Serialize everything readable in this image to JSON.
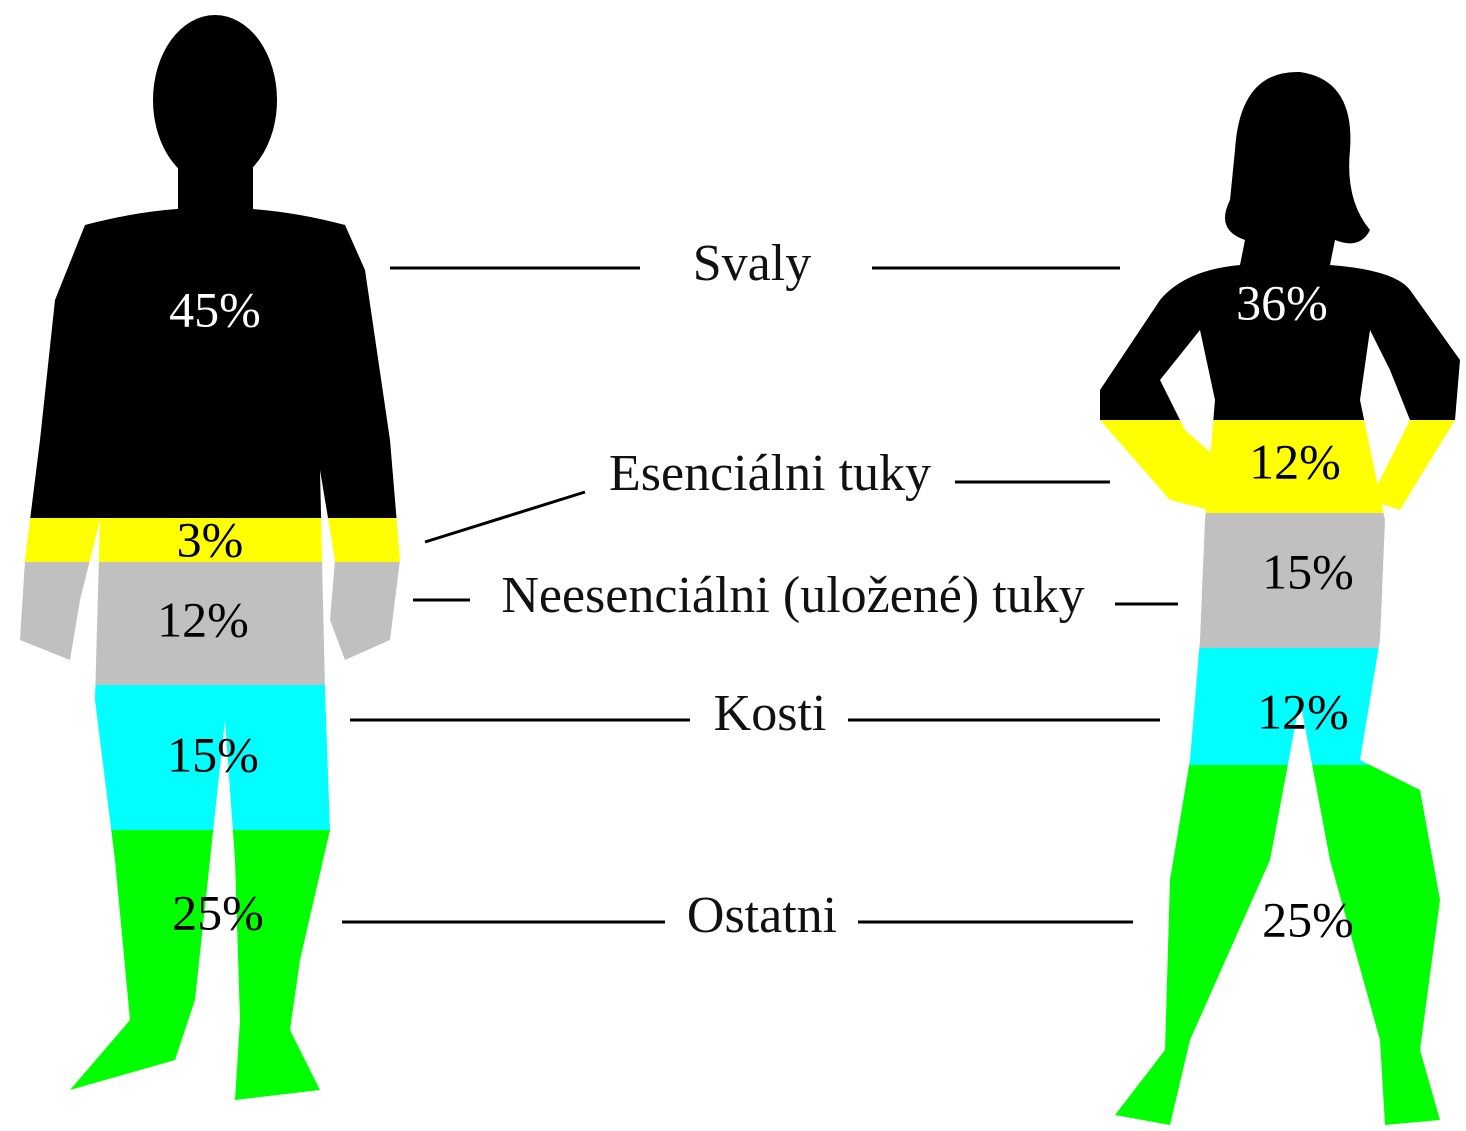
{
  "categories": [
    {
      "label": "Svaly",
      "man": "45%",
      "woman": "36%"
    },
    {
      "label": "Esenciálni tuky",
      "man": "3%",
      "woman": "12%"
    },
    {
      "label": "Neesenciálni (uložené) tuky",
      "man": "12%",
      "woman": "15%"
    },
    {
      "label": "Kosti",
      "man": "15%",
      "woman": "12%"
    },
    {
      "label": "Ostatni",
      "man": "25%",
      "woman": "25%"
    }
  ]
}
